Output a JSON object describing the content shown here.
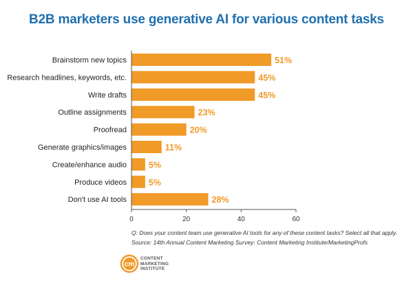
{
  "chart_data": {
    "type": "bar",
    "orientation": "horizontal",
    "title": "B2B marketers use generative AI for various content tasks",
    "categories": [
      "Brainstorm new topics",
      "Research headlines, keywords, etc.",
      "Write drafts",
      "Outline assignments",
      "Proofread",
      "Generate graphics/images",
      "Create/enhance audio",
      "Produce videos",
      "Don't use AI tools"
    ],
    "values": [
      51,
      45,
      45,
      23,
      20,
      11,
      5,
      5,
      28
    ],
    "value_labels": [
      "51%",
      "45%",
      "45%",
      "23%",
      "20%",
      "11%",
      "5%",
      "5%",
      "28%"
    ],
    "xlim": [
      0,
      60
    ],
    "xticks": [
      0,
      20,
      40,
      60
    ],
    "xtick_labels": [
      "0",
      "20",
      "40",
      "60"
    ],
    "grid": false,
    "colors": {
      "bar": "#f09a28",
      "value_label": "#f09a28",
      "title": "#1f6fae",
      "axis": "#555555"
    }
  },
  "footnotes": {
    "question": "Q: Does your content team use generative AI tools for any of these content tasks? Select all that apply.",
    "source": "Source: 14th Annual Content Marketing Survey: Content Marketing Institute/MarketingProfs"
  },
  "logo": {
    "monogram": "cm",
    "text": "CONTENT\nMARKETING\nINSTITUTE",
    "colors": {
      "ring": "#f09a28",
      "fill": "#f09a28",
      "monogram": "#ffffff"
    }
  }
}
